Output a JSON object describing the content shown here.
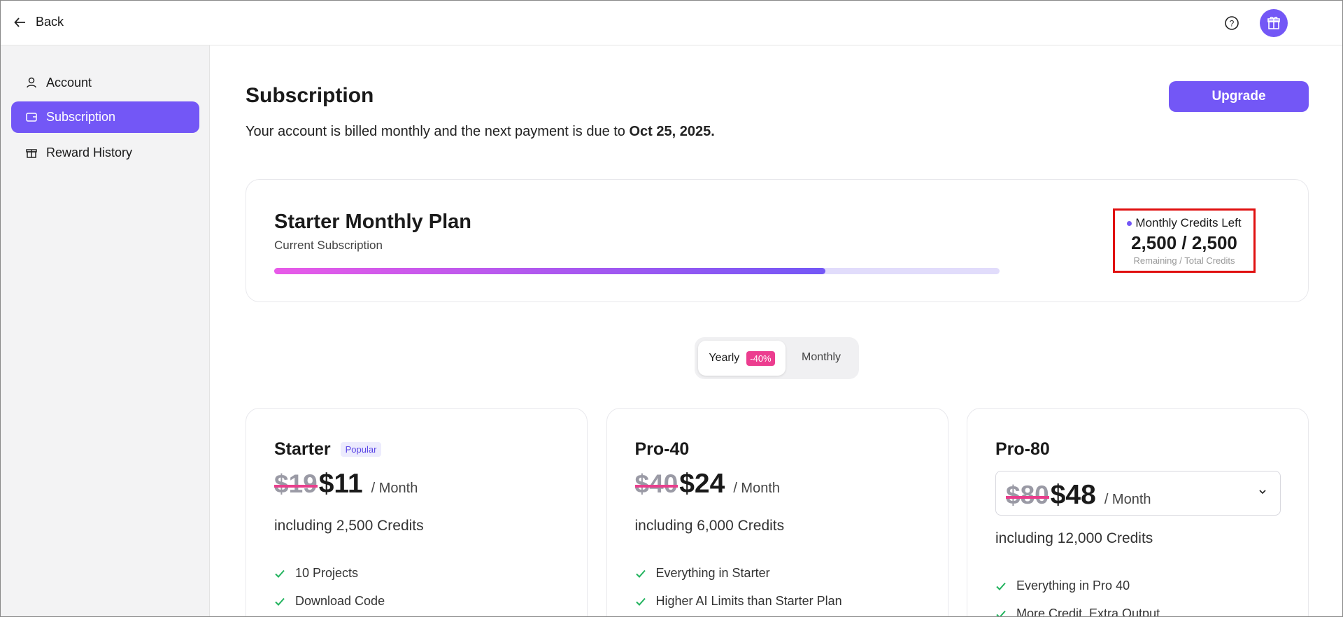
{
  "header": {
    "back": "Back"
  },
  "sidebar": {
    "items": [
      "Account",
      "Subscription",
      "Reward History"
    ]
  },
  "page": {
    "title": "Subscription",
    "billing": "Your account is billed monthly and the next payment is due to",
    "due_date": "Oct 25, 2025.",
    "upgrade": "Upgrade"
  },
  "current_plan": {
    "name": "Starter Monthly Plan",
    "subtitle": "Current Subscription",
    "credits_label": "Monthly Credits Left",
    "credits": "2,500 / 2,500",
    "credits_caption": "Remaining / Total Credits"
  },
  "toggle": {
    "yearly": "Yearly",
    "discount": "-40%",
    "monthly": "Monthly"
  },
  "plans": [
    {
      "name": "Starter",
      "badge": "Popular",
      "old_price": "$19",
      "price": "$11",
      "period": "/ Month",
      "credits": "including 2,500 Credits",
      "features": [
        "10 Projects",
        "Download Code"
      ]
    },
    {
      "name": "Pro-40",
      "old_price": "$40",
      "price": "$24",
      "period": "/ Month",
      "credits": "including 6,000 Credits",
      "features": [
        "Everything in Starter",
        "Higher AI Limits than Starter Plan"
      ]
    },
    {
      "name": "Pro-80",
      "old_price": "$80",
      "price": "$48",
      "period": "/ Month",
      "credits": "including 12,000 Credits",
      "features": [
        "Everything in Pro 40",
        "More Credit, Extra Output"
      ]
    }
  ]
}
